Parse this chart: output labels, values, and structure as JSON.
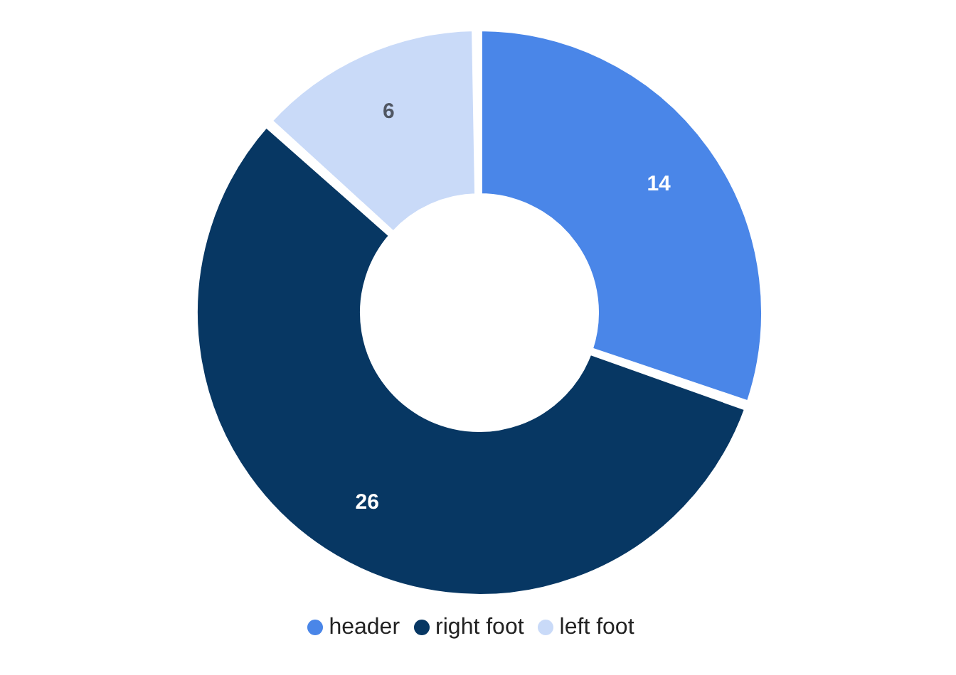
{
  "chart_data": {
    "type": "donut",
    "categories": [
      "header",
      "right foot",
      "left foot"
    ],
    "values": [
      14,
      26,
      6
    ],
    "colors": [
      "#4a86e8",
      "#073763",
      "#c9daf8"
    ],
    "data_labels": true,
    "legend": "bottom"
  }
}
